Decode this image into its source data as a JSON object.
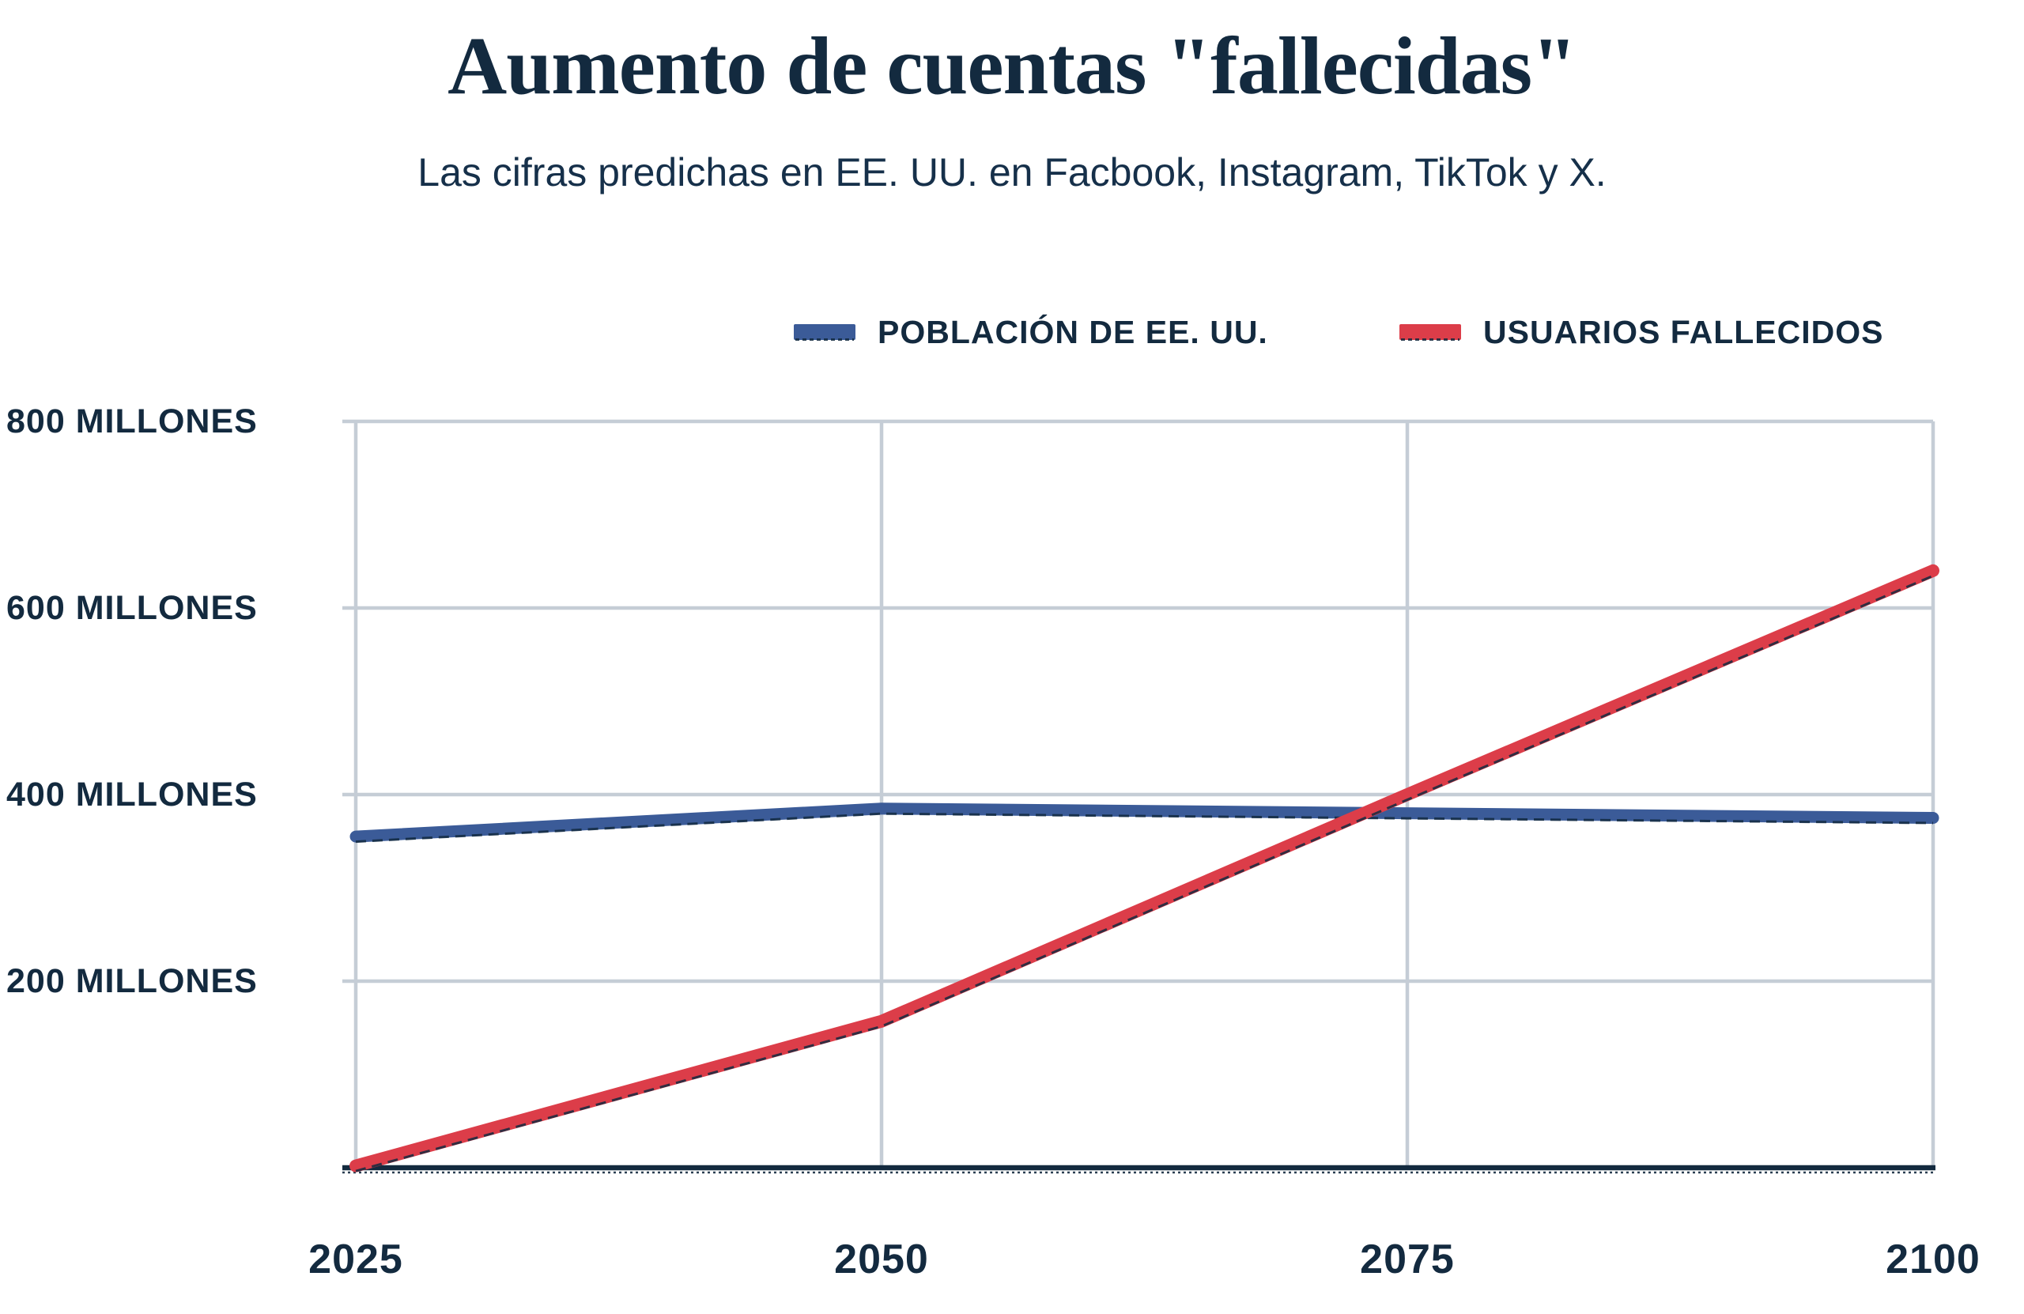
{
  "header": {
    "title": "Aumento de cuentas \"fallecidas\"",
    "subtitle": "Las cifras predichas en EE. UU. en Facbook, Instagram, TikTok y X."
  },
  "legend": {
    "items": [
      {
        "id": "population",
        "label": "POBLACIÓN DE EE. UU.",
        "color": "#3b5b98"
      },
      {
        "id": "deceased",
        "label": "USUARIOS FALLECIDOS",
        "color": "#dc3d49"
      }
    ]
  },
  "colors": {
    "navy_text": "#132a3f",
    "gridline": "#c5cdd6",
    "axis": "#132a3f",
    "background": "#ffffff",
    "population_line": "#3b5b98",
    "deceased_line": "#dc3d49"
  },
  "chart_data": {
    "type": "line",
    "title": "Aumento de cuentas \"fallecidas\"",
    "subtitle": "Las cifras predichas en EE. UU. en Facbook, Instagram, TikTok y X.",
    "units": "millones",
    "x": [
      2025,
      2050,
      2075,
      2100
    ],
    "x_tick_labels": [
      "2025",
      "2050",
      "2075",
      "2100"
    ],
    "xlim": [
      2025,
      2100
    ],
    "ylim": [
      0,
      800
    ],
    "y_ticks": [
      {
        "value": 800,
        "label": "800 MILLONES"
      },
      {
        "value": 600,
        "label": "600 MILLONES"
      },
      {
        "value": 400,
        "label": "400 MILLONES"
      },
      {
        "value": 200,
        "label": "200 MILLONES"
      }
    ],
    "grid": true,
    "legend_position": "top-right",
    "series": [
      {
        "name": "POBLACIÓN DE EE. UU.",
        "color": "#3b5b98",
        "values": [
          355,
          385,
          380,
          375
        ]
      },
      {
        "name": "USUARIOS FALLECIDOS",
        "color": "#dc3d49",
        "values": [
          2,
          157,
          400,
          640
        ]
      }
    ]
  }
}
